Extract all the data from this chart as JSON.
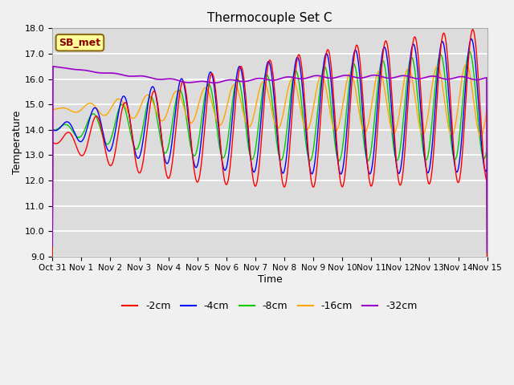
{
  "title": "Thermocouple Set C",
  "xlabel": "Time",
  "ylabel": "Temperature",
  "ylim": [
    9.0,
    18.0
  ],
  "yticks": [
    9.0,
    10.0,
    11.0,
    12.0,
    13.0,
    14.0,
    15.0,
    16.0,
    17.0,
    18.0
  ],
  "xtick_labels": [
    "Oct 31",
    "Nov 1",
    "Nov 2",
    "Nov 3",
    "Nov 4",
    "Nov 5",
    "Nov 6",
    "Nov 7",
    "Nov 8",
    "Nov 9",
    "Nov 10",
    "Nov 11",
    "Nov 12",
    "Nov 13",
    "Nov 14",
    "Nov 15"
  ],
  "annotation_text": "SB_met",
  "annotation_color": "#8B0000",
  "annotation_bg": "#FFFF99",
  "annotation_border": "#8B6914",
  "colors": {
    "-2cm": "#FF0000",
    "-4cm": "#0000FF",
    "-8cm": "#00CC00",
    "-16cm": "#FFA500",
    "-32cm": "#9900CC"
  },
  "bg_color": "#DCDCDC",
  "fig_bg": "#F0F0F0",
  "legend_colors": [
    "#FF0000",
    "#0000FF",
    "#00CC00",
    "#FFA500",
    "#9900CC"
  ],
  "legend_labels": [
    "-2cm",
    "-4cm",
    "-8cm",
    "-16cm",
    "-32cm"
  ]
}
